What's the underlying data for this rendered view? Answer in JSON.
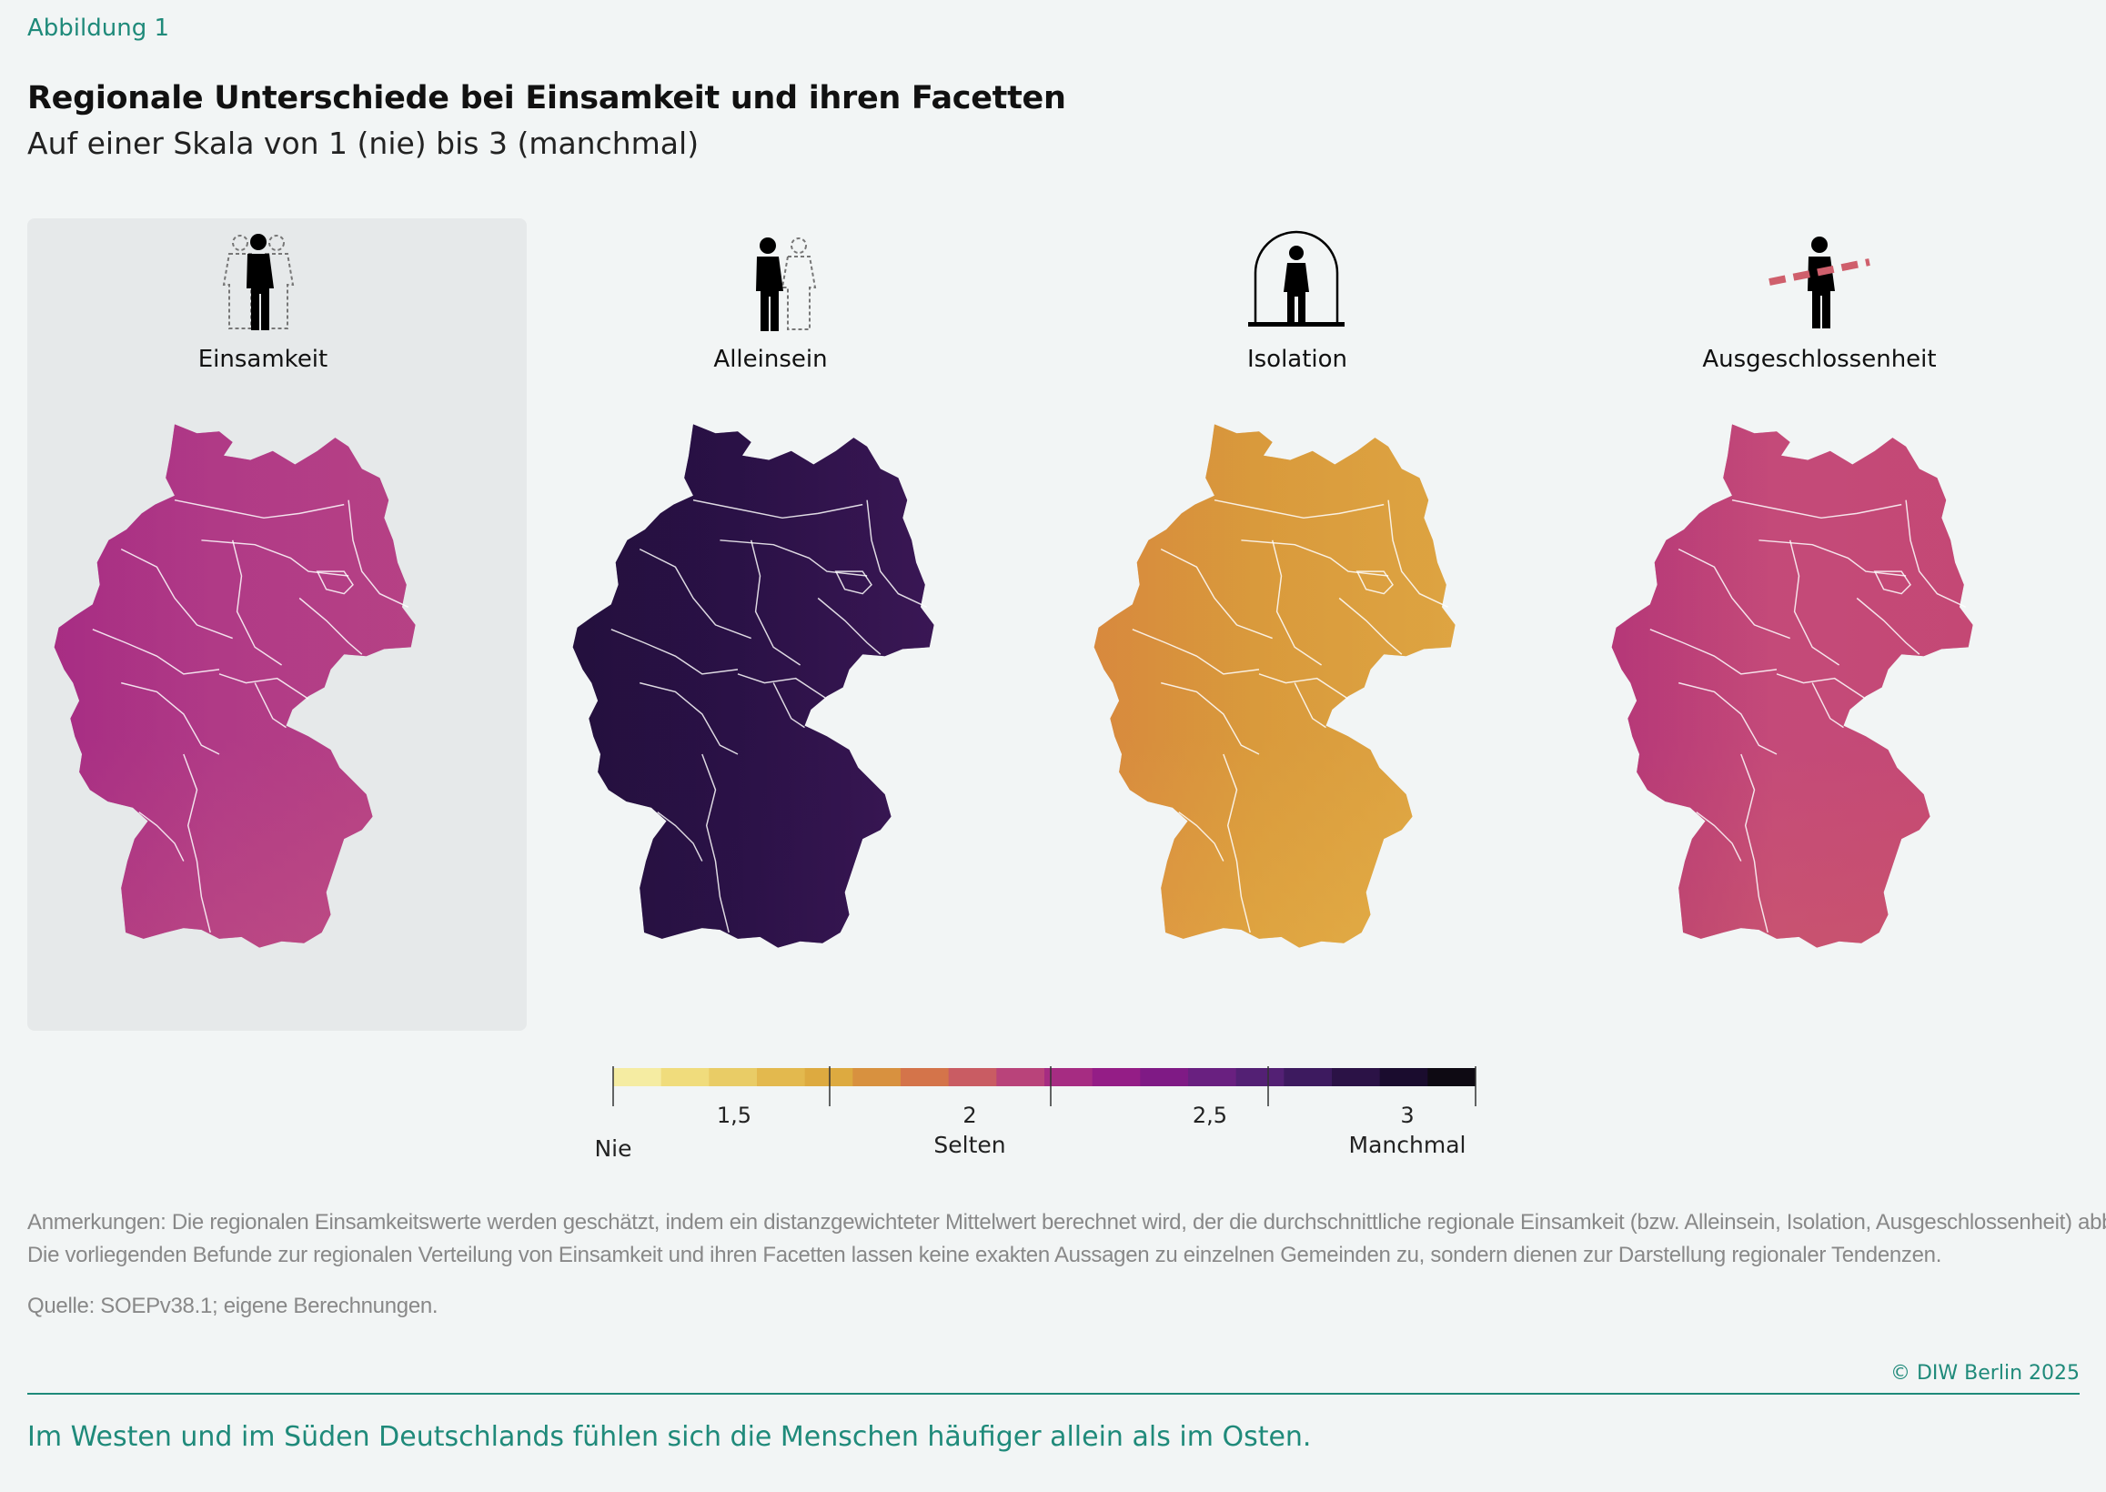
{
  "figure_label": "Abbildung 1",
  "title": "Regionale Unterschiede bei Einsamkeit und ihren Facetten",
  "subtitle": "Auf einer Skala von 1 (nie) bis 3 (manchmal)",
  "panels": [
    {
      "label": "Einsamkeit",
      "icon": "person-with-dashed-companions-icon",
      "highlighted": true,
      "base_color": "#b03a86",
      "west_color": "#9c1d80",
      "south_color": "#c04f82",
      "east_color": "#bd4a83"
    },
    {
      "label": "Alleinsein",
      "icon": "person-with-one-dashed-companion-icon",
      "highlighted": false,
      "base_color": "#2a1146",
      "west_color": "#1c0f33",
      "south_color": "#2c1248",
      "east_color": "#4d1e66"
    },
    {
      "label": "Isolation",
      "icon": "person-under-dome-icon",
      "highlighted": false,
      "base_color": "#d99a3c",
      "west_color": "#d6743f",
      "south_color": "#e3ac45",
      "east_color": "#e3b048"
    },
    {
      "label": "Ausgeschlossenheit",
      "icon": "person-crossed-out-icon",
      "highlighted": false,
      "base_color": "#c44a79",
      "west_color": "#a32077",
      "south_color": "#cc5a6a",
      "east_color": "#c4466f"
    }
  ],
  "legend": {
    "colors": [
      "#f5eca2",
      "#f0dc7c",
      "#e9cc66",
      "#e3b94e",
      "#ddaa40",
      "#d8913f",
      "#d4744a",
      "#c95c63",
      "#b9437a",
      "#a62c82",
      "#941d86",
      "#7f1a85",
      "#692080",
      "#532074",
      "#3d1a5f",
      "#2b1246",
      "#1a0c2e",
      "#0e0a13"
    ],
    "ticks": [
      "1,5",
      "2",
      "2,5",
      "3"
    ],
    "labels": [
      "Nie",
      "Selten",
      "Manchmal"
    ]
  },
  "notes": [
    "Anmerkungen: Die regionalen Einsamkeitswerte werden geschätzt, indem ein distanzgewichteter Mittelwert berechnet wird, der die durchschnittliche regionale Einsamkeit (bzw. Alleinsein, Isolation, Ausgeschlossenheit) abbildet.",
    "Die vorliegenden Befunde zur regionalen Verteilung von Einsamkeit und ihren Facetten lassen keine exakten Aussagen zu einzelnen Gemeinden zu, sondern dienen zur Darstellung regionaler Tendenzen."
  ],
  "source": "Quelle: SOEPv38.1; eigene Berechnungen.",
  "copyright": "© DIW Berlin 2025",
  "takeaway": "Im Westen und im Süden Deutschlands fühlen sich die Menschen häufiger allein als im Osten."
}
